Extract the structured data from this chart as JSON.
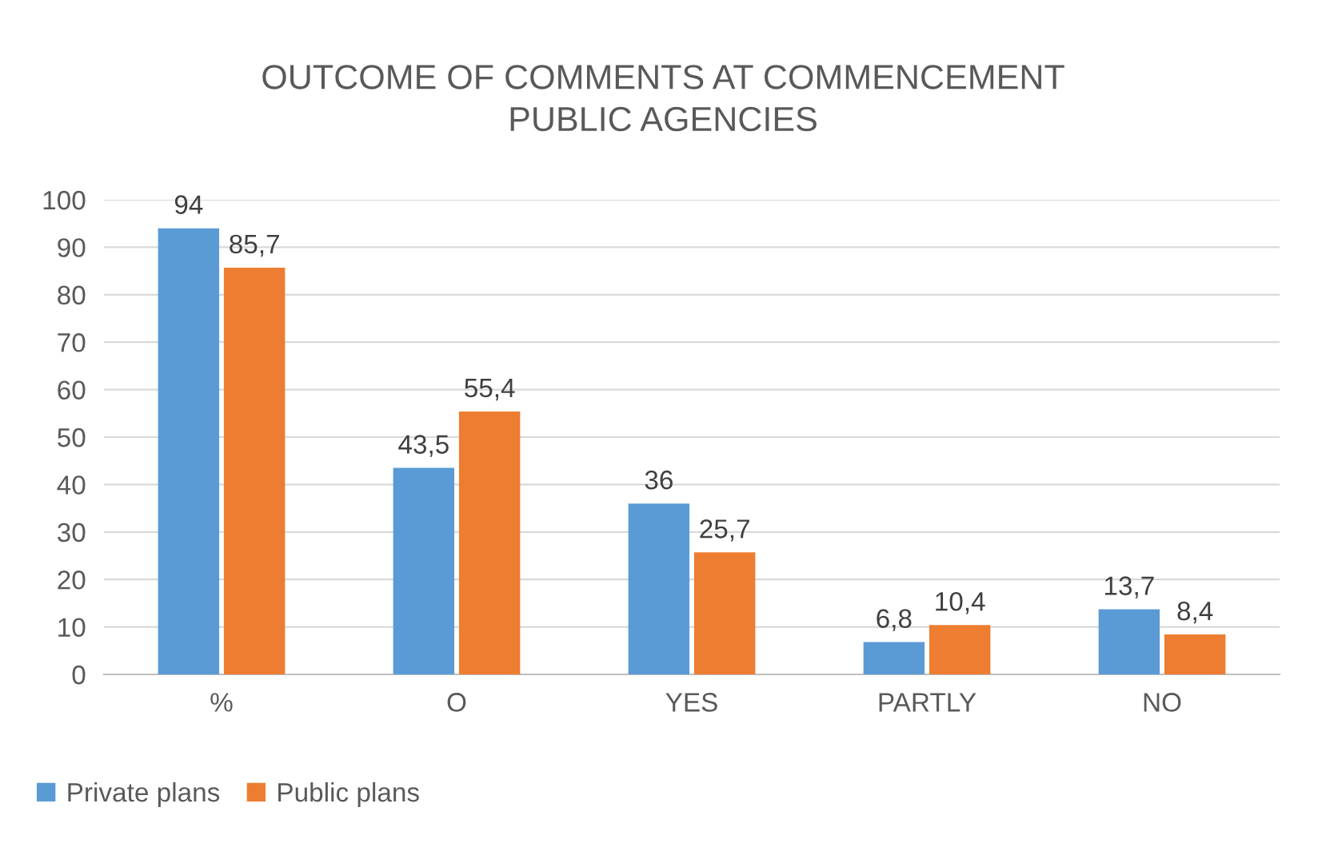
{
  "chart_data": {
    "type": "bar",
    "title": "OUTCOME OF COMMENTS AT COMMENCEMENT\nPUBLIC AGENCIES",
    "categories": [
      "%",
      "O",
      "YES",
      "PARTLY",
      "NO"
    ],
    "series": [
      {
        "name": "Private plans",
        "color": "#5b9bd5",
        "values": [
          94,
          43.5,
          36,
          6.8,
          13.7
        ],
        "value_labels": [
          "94",
          "43,5",
          "36",
          "6,8",
          "13,7"
        ]
      },
      {
        "name": "Public plans",
        "color": "#ed7d31",
        "values": [
          85.7,
          55.4,
          25.7,
          10.4,
          8.4
        ],
        "value_labels": [
          "85,7",
          "55,4",
          "25,7",
          "10,4",
          "8,4"
        ]
      }
    ],
    "ylim": [
      0,
      100
    ],
    "yticks": [
      0,
      10,
      20,
      30,
      40,
      50,
      60,
      70,
      80,
      90,
      100
    ],
    "grid": "y",
    "legend": "bottom left"
  }
}
